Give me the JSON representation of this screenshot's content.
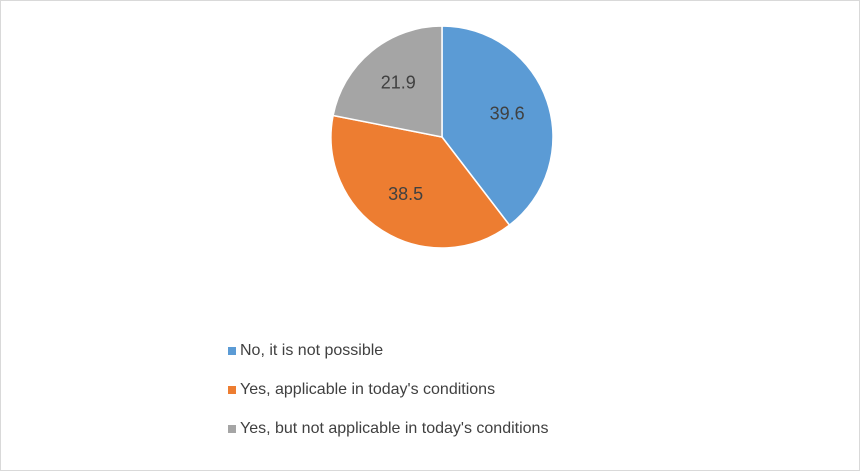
{
  "chart_data": {
    "type": "pie",
    "categories": [
      "No, it is not possible",
      "Yes, applicable in today's conditions",
      "Yes, but not applicable in today's conditions"
    ],
    "values": [
      39.6,
      38.5,
      21.9
    ],
    "colors": [
      "#5b9bd5",
      "#ed7d31",
      "#a5a5a5"
    ],
    "legend": "bottom"
  }
}
